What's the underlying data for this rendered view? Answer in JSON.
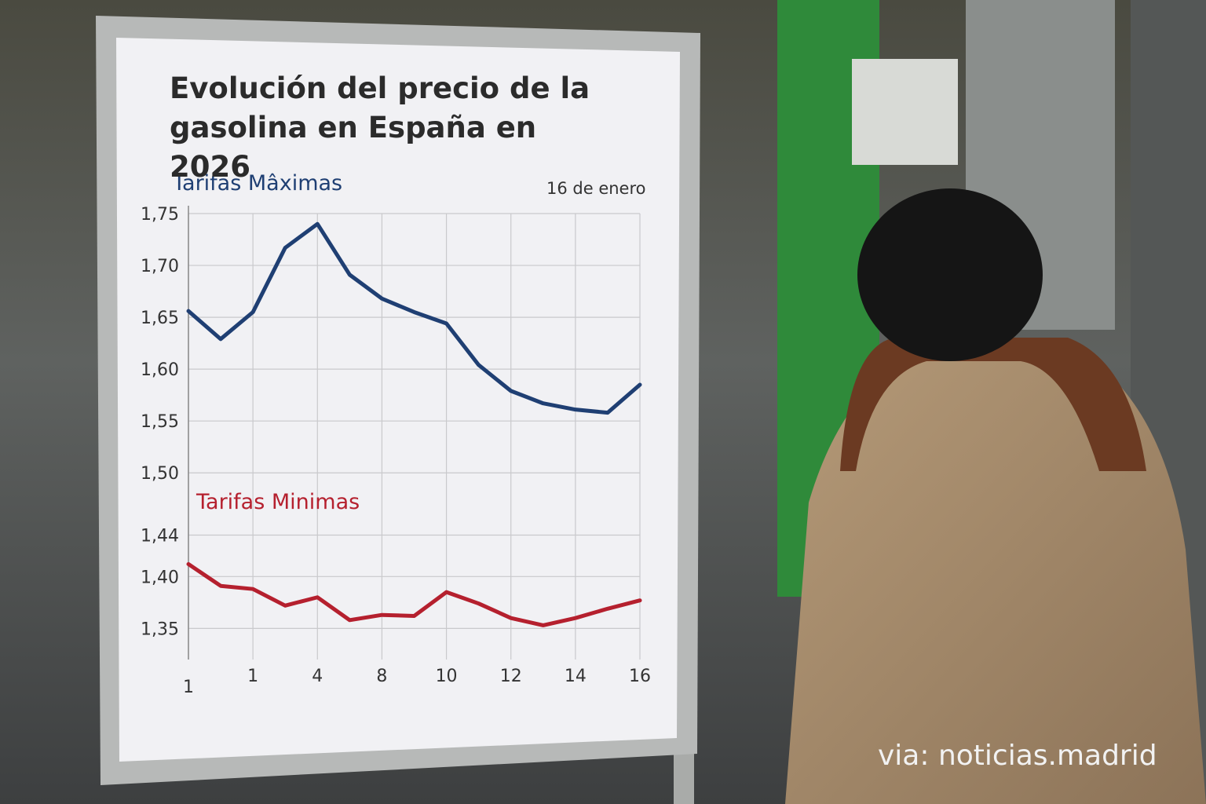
{
  "chart_data": {
    "type": "line",
    "title": "Evolución del precio de la gasolina en España en 2026",
    "subtitle": "16 de enero",
    "credit": "via: noticias.madrid",
    "categories": [
      "1",
      null,
      "1",
      null,
      "4",
      null,
      "8",
      null,
      "10",
      null,
      "12",
      null,
      "14",
      null,
      "16"
    ],
    "series": [
      {
        "name": "Tarifas Mâximas",
        "color": "#1f3f73",
        "values": [
          1.656,
          1.629,
          1.655,
          1.717,
          1.74,
          1.691,
          1.668,
          1.655,
          1.644,
          1.604,
          1.579,
          1.567,
          1.561,
          1.558,
          1.585
        ]
      },
      {
        "name": "Tarifas Minimas",
        "color": "#b5202e",
        "values": [
          1.412,
          1.391,
          1.388,
          1.372,
          1.38,
          1.358,
          1.363,
          1.362,
          1.385,
          1.374,
          1.36,
          1.353,
          1.36,
          1.369,
          1.377
        ]
      }
    ],
    "ylim": [
      1.32,
      1.75
    ],
    "yticks": [
      {
        "value": 1.75,
        "label": "1,75"
      },
      {
        "value": 1.7,
        "label": "1,70"
      },
      {
        "value": 1.65,
        "label": "1,65"
      },
      {
        "value": 1.6,
        "label": "1,60"
      },
      {
        "value": 1.55,
        "label": "1,55"
      },
      {
        "value": 1.5,
        "label": "1,50"
      },
      {
        "value": 1.44,
        "label": "1,44"
      },
      {
        "value": 1.4,
        "label": "1,40"
      },
      {
        "value": 1.35,
        "label": "1,35"
      }
    ],
    "grid": true
  }
}
